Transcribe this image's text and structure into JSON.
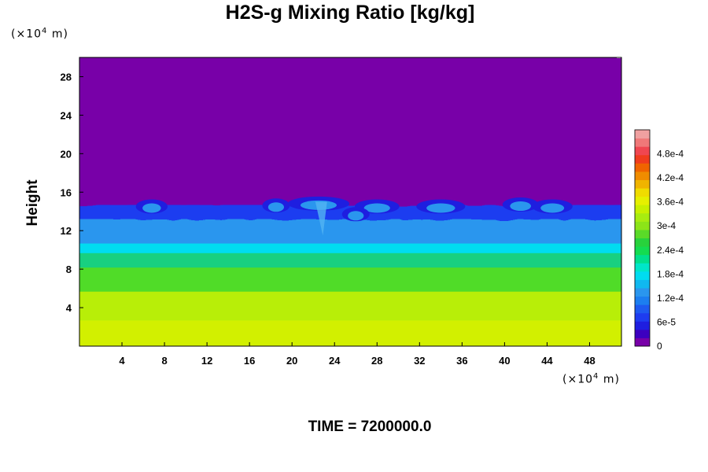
{
  "title": "H2S-g Mixing Ratio [kg/kg]",
  "y_unit": {
    "prefix": "(×10",
    "exp": "4",
    "suffix": " m)"
  },
  "x_unit": {
    "prefix": "(×10",
    "exp": "4",
    "suffix": " m)"
  },
  "ylabel": "Height",
  "time_label": "TIME = 7200000.0",
  "colors": {
    "background_purple": "#7800a8",
    "deep_blue": "#1e1ee0",
    "mid_blue": "#1c7ef0",
    "light_blue": "#2a96ee",
    "cyan": "#00dcf0",
    "green": "#28d23c",
    "yellow_green": "#a8ec10",
    "yellow": "#d2f000"
  },
  "chart_data": {
    "type": "heatmap",
    "title": "H2S-g Mixing Ratio [kg/kg]",
    "xlabel": "(×10⁴ m)",
    "ylabel": "Height",
    "y_unit": "(×10⁴ m)",
    "x_ticks": [
      "4",
      "8",
      "12",
      "16",
      "20",
      "24",
      "28",
      "32",
      "36",
      "40",
      "44",
      "48"
    ],
    "x_tick_values": [
      4,
      8,
      12,
      16,
      20,
      24,
      28,
      32,
      36,
      40,
      44,
      48
    ],
    "y_ticks": [
      "4",
      "8",
      "12",
      "16",
      "20",
      "24",
      "28"
    ],
    "y_tick_values": [
      4,
      8,
      12,
      16,
      20,
      24,
      28
    ],
    "xlim": [
      0,
      51
    ],
    "ylim": [
      0,
      30
    ],
    "colorbar": {
      "labels": [
        "0",
        "6e-5",
        "1.2e-4",
        "1.8e-4",
        "2.4e-4",
        "3e-4",
        "3.6e-4",
        "4.2e-4",
        "4.8e-4"
      ],
      "values": [
        0,
        6e-05,
        0.00012,
        0.00018,
        0.00024,
        0.0003,
        0.00036,
        0.00042,
        0.00048
      ],
      "max": 0.00054,
      "levels": [
        "#7800a8",
        "#3c00c0",
        "#1e1ee0",
        "#1e3cf0",
        "#1e5af0",
        "#1c7ef0",
        "#2a96ee",
        "#10b8f0",
        "#00dcf0",
        "#00e6c8",
        "#00e08c",
        "#14dc50",
        "#28d23c",
        "#5ada28",
        "#8ce418",
        "#a8ec10",
        "#c8f000",
        "#e6f000",
        "#f0dc00",
        "#f0b400",
        "#f08c00",
        "#f06400",
        "#f03c1e",
        "#f04650",
        "#f07878",
        "#f0a0a0"
      ]
    },
    "layers": [
      {
        "from": 0,
        "to": 2.5,
        "color": "#d2f000",
        "label": "~3.8e-4"
      },
      {
        "from": 2.5,
        "to": 5.5,
        "color": "#b8ee08",
        "label": "~3.6e-4"
      },
      {
        "from": 5.5,
        "to": 8,
        "color": "#50dc28",
        "label": "~3e-4"
      },
      {
        "from": 8,
        "to": 9.5,
        "color": "#18d080",
        "label": "~2.4e-4"
      },
      {
        "from": 9.5,
        "to": 10.5,
        "color": "#00dcf0",
        "label": "~1.8e-4"
      },
      {
        "from": 10.5,
        "to": 13,
        "color": "#2a96ee",
        "label": "~1.2e-4"
      },
      {
        "from": 13,
        "to": 14.5,
        "color": "#1e3cf0",
        "label": "~6e-5"
      },
      {
        "from": 14.5,
        "to": 30,
        "color": "#7800a8",
        "label": "0"
      }
    ]
  }
}
